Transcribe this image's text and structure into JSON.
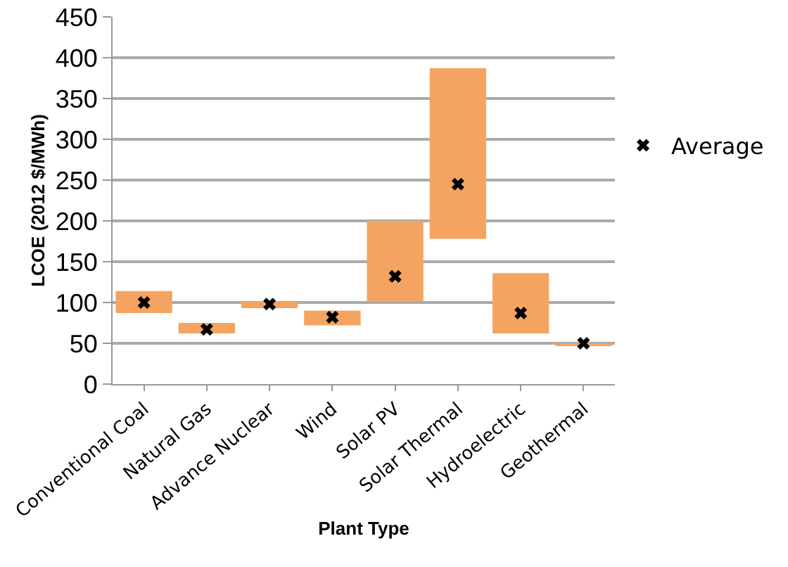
{
  "chart_data": {
    "type": "bar",
    "xlabel": "Plant Type",
    "ylabel": "LCOE (2012 $/MWh)",
    "categories": [
      "Conventional Coal",
      "Natural Gas",
      "Advance Nuclear",
      "Wind",
      "Solar PV",
      "Solar Thermal",
      "Hydroelectric",
      "Geothermal"
    ],
    "series": [
      {
        "color": "#f4a460",
        "base": [
          87,
          62,
          93,
          72,
          101,
          178,
          62,
          47
        ],
        "values": [
          27,
          13,
          8,
          18,
          99,
          209,
          74,
          3
        ]
      },
      {
        "type": "scatter",
        "name": "Average",
        "color": "#000000",
        "values": [
          100,
          67,
          98,
          82,
          132,
          245,
          87,
          50
        ]
      }
    ],
    "ylim": [
      0,
      450
    ],
    "yticks": [
      0,
      50,
      100,
      150,
      200,
      250,
      300,
      350,
      400,
      450
    ],
    "grid": "y",
    "legend": "right",
    "marker": "cross"
  }
}
